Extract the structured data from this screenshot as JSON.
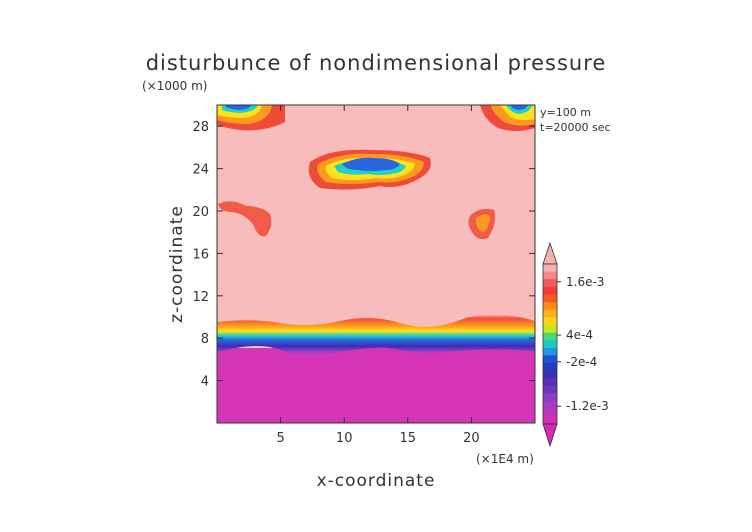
{
  "chart_data": {
    "type": "heatmap",
    "title": "disturbunce of nondimensional pressure",
    "y_unit": "(×1000 m)",
    "x_unit": "(×1E4 m)",
    "xlabel": "x-coordinate",
    "ylabel": "z-coordinate",
    "annotations": [
      "y=100 m",
      "t=20000 sec"
    ],
    "x_ticks": [
      5,
      10,
      15,
      20
    ],
    "y_ticks": [
      4,
      8,
      12,
      16,
      20,
      24,
      28
    ],
    "xlim": [
      0,
      25
    ],
    "ylim": [
      0,
      30
    ],
    "colorbar": {
      "tick_labels": [
        "1.6e-3",
        "4e-4",
        "-2e-4",
        "-1.2e-3"
      ],
      "tick_values": [
        0.0016,
        0.0004,
        -0.0002,
        -0.0012
      ],
      "top_triangle_color": "#f4b0b0",
      "bottom_triangle_color": "#d42ab8"
    },
    "regions": [
      {
        "description": "uniform background above z≈9",
        "color": "#f9bcbc",
        "approx_value": 0.0018
      },
      {
        "description": "strong negative layer below z≈8",
        "color": "#d634b6",
        "approx_value": -0.0016
      },
      {
        "description": "transition band z≈8–10",
        "colors": [
          "#f33a35",
          "#f98a1c",
          "#ffd21a",
          "#1ec8c8",
          "#1f4fd8",
          "#4a2bb5",
          "#8a3fc9"
        ]
      },
      {
        "description": "disturbance patch x≈8–17, z≈23–26",
        "min_color": "#1f4fd8"
      },
      {
        "description": "top-left corner disturbance x≈0–4, z≈28–30",
        "min_color": "#1f4fd8"
      },
      {
        "description": "top-right corner disturbance x≈21–25, z≈28–30",
        "min_color": "#1f4fd8"
      },
      {
        "description": "small patch x≈3–5, z≈18–21",
        "color": "#f25a4a"
      },
      {
        "description": "small patch x≈20–22, z≈18–21",
        "color": "#f25a4a"
      }
    ]
  }
}
